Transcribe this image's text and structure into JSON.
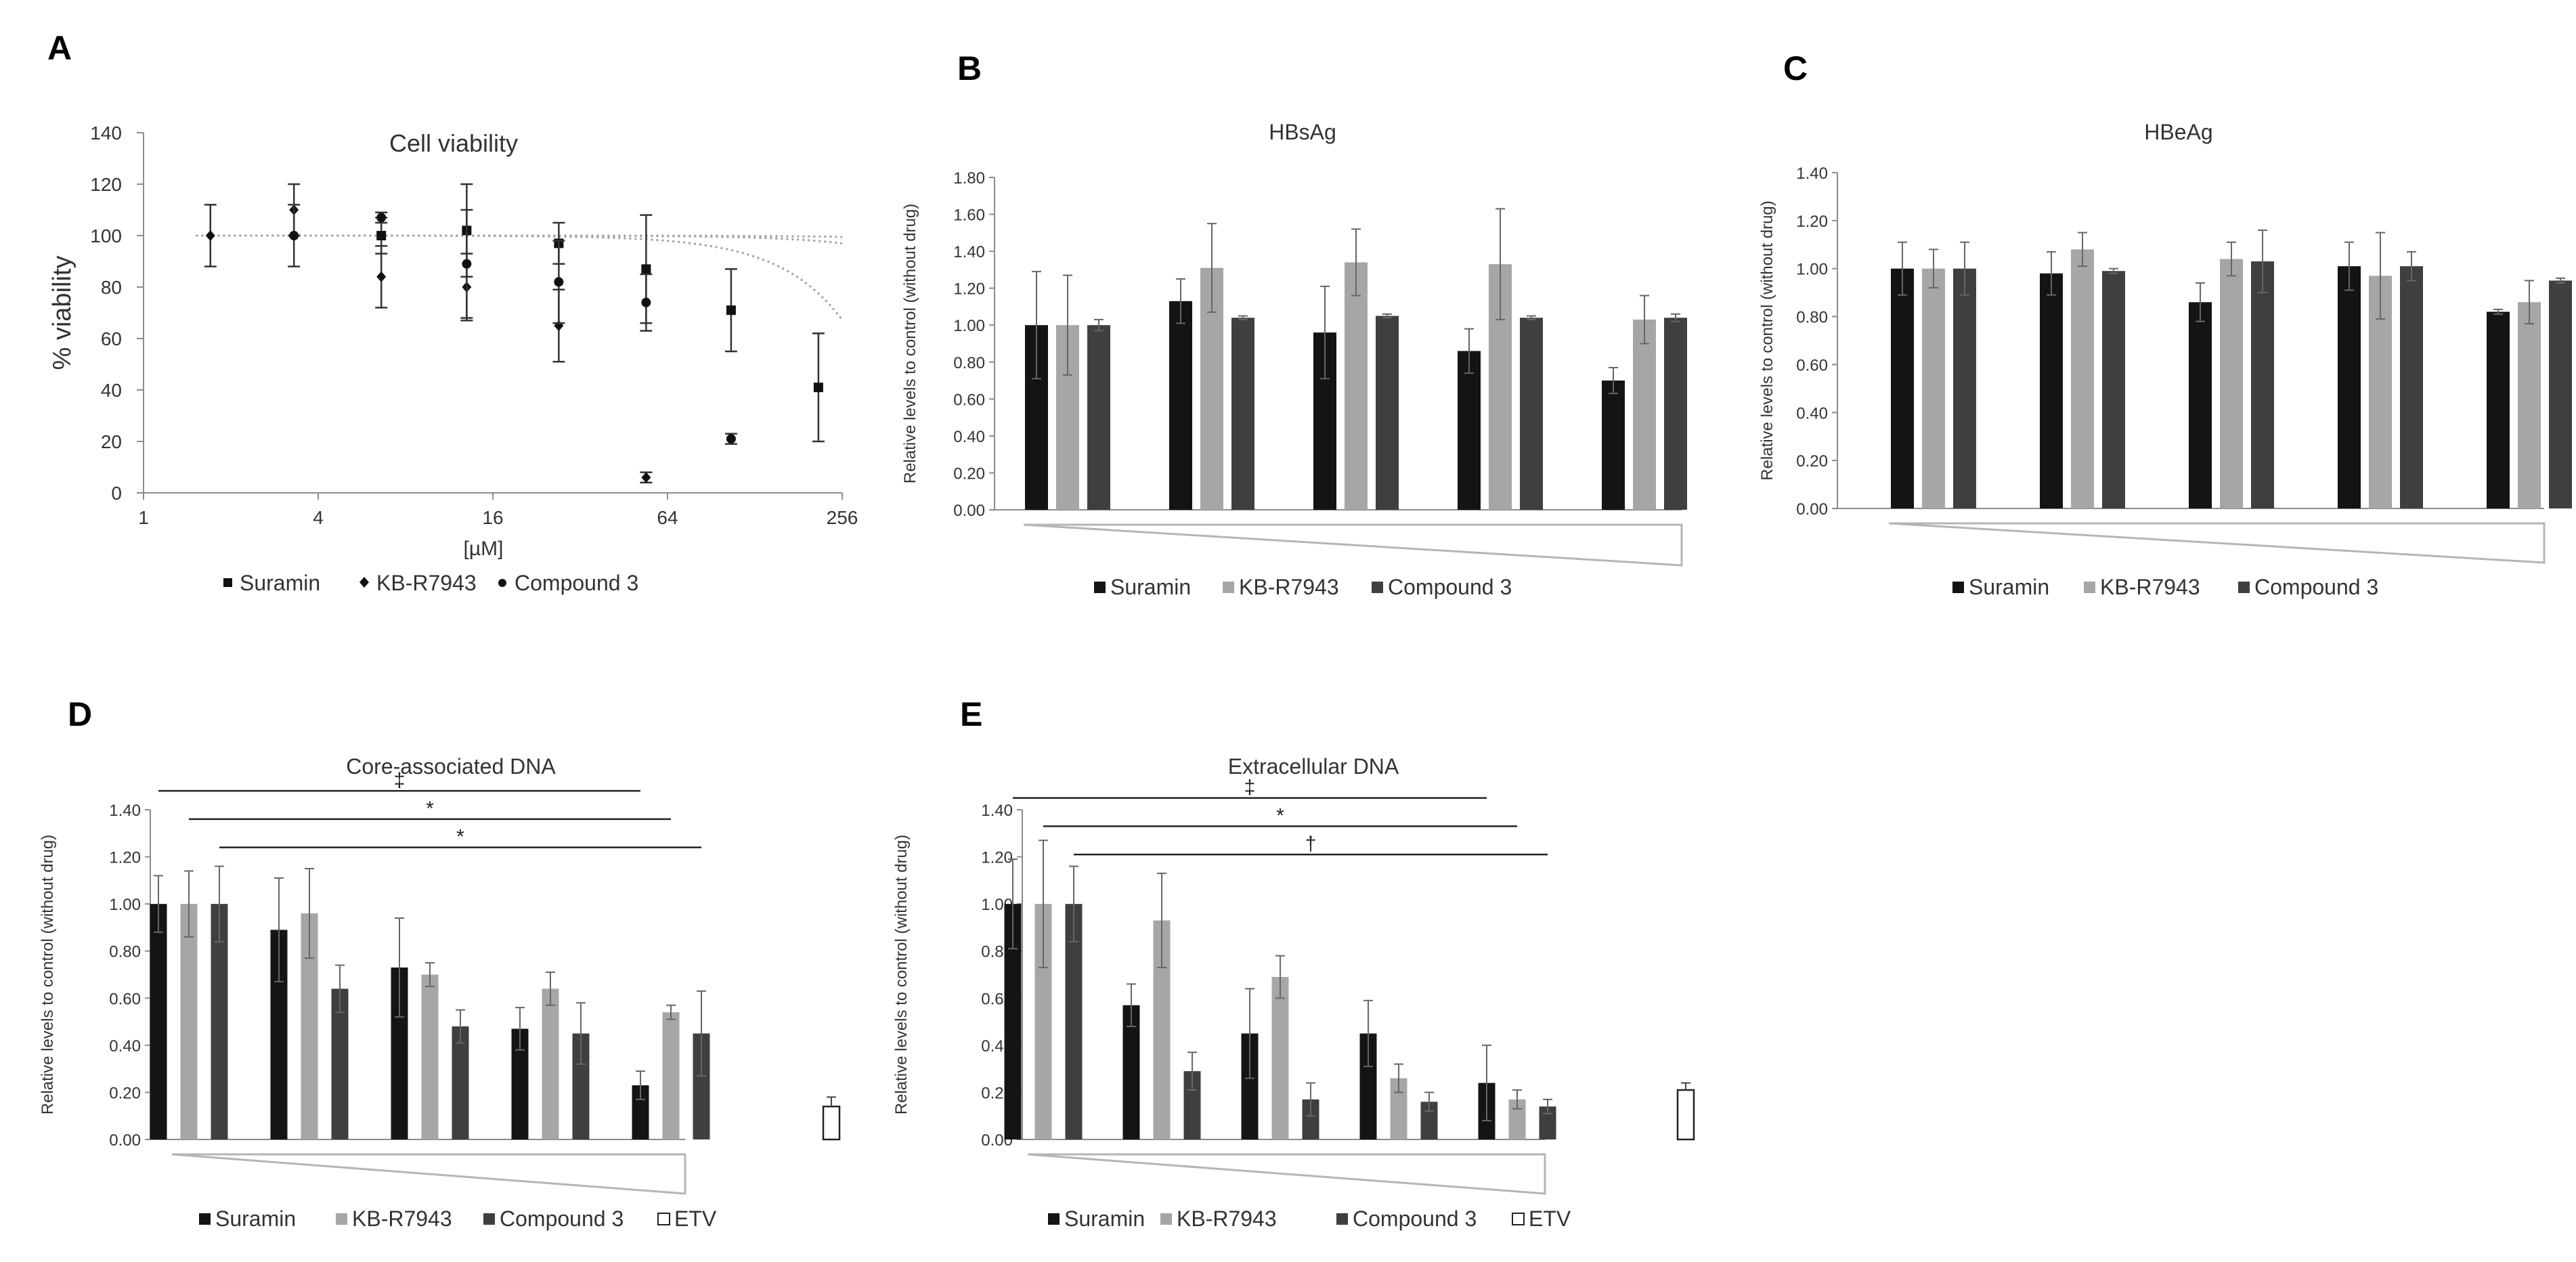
{
  "colors": {
    "suramin": "#141414",
    "kb": "#a6a6a6",
    "compound3": "#3f3f3f",
    "etv": "#ffffff",
    "trend": "#a0a0a0",
    "axis": "#8c8c8c",
    "text": "#333333"
  },
  "chart_data": [
    {
      "panel": "A",
      "type": "scatter",
      "title": "Cell viability",
      "xlabel": "[µM]",
      "ylabel": "% viability",
      "x_scale": "log2",
      "x_ticks": [
        1,
        4,
        16,
        64,
        256
      ],
      "x_tick_labels": [
        "1",
        "4",
        "16",
        "64",
        "256"
      ],
      "xlim": [
        1,
        256
      ],
      "ylim": [
        0,
        140
      ],
      "y_ticks": [
        0,
        20,
        40,
        60,
        80,
        100,
        120,
        140
      ],
      "y_tick_labels": [
        "0",
        "20",
        "40",
        "60",
        "80",
        "100",
        "120",
        "140"
      ],
      "legend": [
        "Suramin",
        "KB-R7943",
        "Compound 3"
      ],
      "series": [
        {
          "name": "Suramin",
          "marker": "square",
          "x": [
            6.6,
            13,
            27,
            54,
            106,
            212
          ],
          "y": [
            100,
            102,
            97,
            87,
            71,
            41
          ],
          "err": [
            7,
            18,
            8,
            21,
            16,
            21
          ]
        },
        {
          "name": "KB-R7943",
          "marker": "diamond",
          "x": [
            1.7,
            3.3,
            6.6,
            13,
            27,
            54
          ],
          "y": [
            100,
            110,
            84,
            80,
            65,
            6
          ],
          "err": [
            12,
            10,
            12,
            13,
            14,
            2
          ]
        },
        {
          "name": "Compound 3",
          "marker": "circle",
          "x": [
            3.3,
            6.6,
            13,
            27,
            54,
            106
          ],
          "y": [
            100,
            107,
            89,
            82,
            74,
            21
          ],
          "err": [
            12,
            2,
            21,
            16,
            11,
            2
          ]
        }
      ],
      "trend": [
        {
          "k": 0.0005,
          "b": 2.0
        },
        {
          "k": 8e-05,
          "b": 1.9
        },
        {
          "k": 2.4e-05,
          "b": 1.8
        }
      ]
    },
    {
      "panel": "B",
      "type": "bar",
      "title": "HBsAg",
      "ylabel": "Relative levels to control (without drug)",
      "ylim": [
        0,
        1.8
      ],
      "y_ticks": [
        0,
        0.2,
        0.4,
        0.6,
        0.8,
        1,
        1.2,
        1.4,
        1.6,
        1.8
      ],
      "y_tick_labels": [
        "0.00",
        "0.20",
        "0.40",
        "0.60",
        "0.80",
        "1.00",
        "1.20",
        "1.40",
        "1.60",
        "1.80"
      ],
      "groups": 5,
      "series": [
        {
          "name": "Suramin",
          "values": [
            1.0,
            1.13,
            0.96,
            0.86,
            0.7
          ],
          "err": [
            0.29,
            0.12,
            0.25,
            0.12,
            0.07
          ]
        },
        {
          "name": "KB-R7943",
          "values": [
            1.0,
            1.31,
            1.34,
            1.33,
            1.03
          ],
          "err": [
            0.27,
            0.24,
            0.18,
            0.3,
            0.13
          ]
        },
        {
          "name": "Compound 3",
          "values": [
            1.0,
            1.04,
            1.05,
            1.04,
            1.04
          ],
          "err": [
            0.03,
            0.01,
            0.01,
            0.01,
            0.02
          ]
        }
      ],
      "legend": [
        "Suramin",
        "KB-R7943",
        "Compound 3"
      ],
      "dose_gradient": "decreasing-wedge"
    },
    {
      "panel": "C",
      "type": "bar",
      "title": "HBeAg",
      "ylabel": "Relative levels to control (without drug)",
      "ylim": [
        0,
        1.4
      ],
      "y_ticks": [
        0,
        0.2,
        0.4,
        0.6,
        0.8,
        1,
        1.2,
        1.4
      ],
      "y_tick_labels": [
        "0.00",
        "0.20",
        "0.40",
        "0.60",
        "0.80",
        "1.00",
        "1.20",
        "1.40"
      ],
      "groups": 5,
      "series": [
        {
          "name": "Suramin",
          "values": [
            1.0,
            0.98,
            0.86,
            1.01,
            0.82
          ],
          "err": [
            0.11,
            0.09,
            0.08,
            0.1,
            0.01
          ]
        },
        {
          "name": "KB-R7943",
          "values": [
            1.0,
            1.08,
            1.04,
            0.97,
            0.86
          ],
          "err": [
            0.08,
            0.07,
            0.07,
            0.18,
            0.09
          ]
        },
        {
          "name": "Compound 3",
          "values": [
            1.0,
            0.99,
            1.03,
            1.01,
            0.95
          ],
          "err": [
            0.11,
            0.01,
            0.13,
            0.06,
            0.01
          ]
        }
      ],
      "legend": [
        "Suramin",
        "KB-R7943",
        "Compound 3"
      ],
      "dose_gradient": "decreasing-wedge"
    },
    {
      "panel": "D",
      "type": "bar",
      "title": "Core-associated DNA",
      "ylabel": "Relative levels to control (without drug)",
      "ylim": [
        0,
        1.4
      ],
      "y_ticks": [
        0,
        0.2,
        0.4,
        0.6,
        0.8,
        1,
        1.2,
        1.4
      ],
      "y_tick_labels": [
        "0.00",
        "0.20",
        "0.40",
        "0.60",
        "0.80",
        "1.00",
        "1.20",
        "1.40"
      ],
      "groups": 5,
      "series": [
        {
          "name": "Suramin",
          "values": [
            1.0,
            0.89,
            0.73,
            0.47,
            0.23
          ],
          "err": [
            0.12,
            0.22,
            0.21,
            0.09,
            0.06
          ]
        },
        {
          "name": "KB-R7943",
          "values": [
            1.0,
            0.96,
            0.7,
            0.64,
            0.54
          ],
          "err": [
            0.14,
            0.19,
            0.05,
            0.07,
            0.03
          ]
        },
        {
          "name": "Compound 3",
          "values": [
            1.0,
            0.64,
            0.48,
            0.45,
            0.45
          ],
          "err": [
            0.16,
            0.1,
            0.07,
            0.13,
            0.18
          ]
        }
      ],
      "extra_bar": {
        "name": "ETV",
        "value": 0.14,
        "err": 0.04
      },
      "legend": [
        "Suramin",
        "KB-R7943",
        "Compound 3",
        "ETV"
      ],
      "dose_gradient": "decreasing-wedge",
      "significance": [
        {
          "symbol": "‡",
          "from_group": 0,
          "to_group": 4,
          "series": 0,
          "level": 1.48
        },
        {
          "symbol": "*",
          "from_group": 0,
          "to_group": 4,
          "series": 1,
          "level": 1.36
        },
        {
          "symbol": "*",
          "from_group": 0,
          "to_group": 4,
          "series": 2,
          "level": 1.24
        }
      ]
    },
    {
      "panel": "E",
      "type": "bar",
      "title": "Extracellular DNA",
      "ylabel": "Relative levels to control (without drug)",
      "ylim": [
        0,
        1.4
      ],
      "y_ticks": [
        0,
        0.2,
        0.4,
        0.6,
        0.8,
        1,
        1.2,
        1.4
      ],
      "y_tick_labels": [
        "0.00",
        "0.20",
        "0.40",
        "0.60",
        "0.80",
        "1.00",
        "1.20",
        "1.40"
      ],
      "groups": 5,
      "series": [
        {
          "name": "Suramin",
          "values": [
            1.0,
            0.57,
            0.45,
            0.45,
            0.24
          ],
          "err": [
            0.19,
            0.09,
            0.19,
            0.14,
            0.16
          ]
        },
        {
          "name": "KB-R7943",
          "values": [
            1.0,
            0.93,
            0.69,
            0.26,
            0.17
          ],
          "err": [
            0.27,
            0.2,
            0.09,
            0.06,
            0.04
          ]
        },
        {
          "name": "Compound 3",
          "values": [
            1.0,
            0.29,
            0.17,
            0.16,
            0.14
          ],
          "err": [
            0.16,
            0.08,
            0.07,
            0.04,
            0.03
          ]
        }
      ],
      "extra_bar": {
        "name": "ETV",
        "value": 0.21,
        "err": 0.03
      },
      "legend": [
        "Suramin",
        "KB-R7943",
        "Compound 3",
        "ETV"
      ],
      "dose_gradient": "decreasing-wedge",
      "significance": [
        {
          "symbol": "‡",
          "from_group": 0,
          "to_group": 4,
          "series": 0,
          "level": 1.45
        },
        {
          "symbol": "*",
          "from_group": 0,
          "to_group": 4,
          "series": 1,
          "level": 1.33
        },
        {
          "symbol": "†",
          "from_group": 0,
          "to_group": 4,
          "series": 2,
          "level": 1.21
        }
      ]
    }
  ]
}
